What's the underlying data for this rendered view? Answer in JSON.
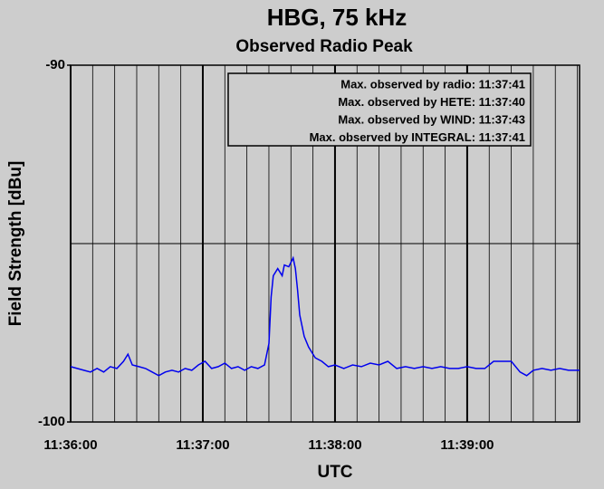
{
  "chart_data": {
    "type": "line",
    "title": "HBG, 75 kHz",
    "subtitle": "Observed Radio Peak",
    "x_label": "UTC",
    "y_label": "Field Strength [dBu]",
    "xlim": [
      "11:36:00",
      "11:39:51"
    ],
    "xticks": [
      "11:36:00",
      "11:37:00",
      "11:38:00",
      "11:39:00"
    ],
    "x_minor_interval_seconds": 10,
    "ylim": [
      -100,
      -90
    ],
    "yticks": [
      -100,
      -90
    ],
    "y_minor_ticks": [
      -95
    ],
    "grid": true,
    "legend": [
      {
        "text": "Max. observed by radio: 11:37:41",
        "color": "#0000ee"
      },
      {
        "text": "Max. observed by HETE: 11:37:40",
        "color": "#ee0000"
      },
      {
        "text": "Max. observed by WIND: 11:37:43",
        "color": "#ee0000"
      },
      {
        "text": "Max. observed by INTEGRAL: 11:37:41",
        "color": "#ee0000"
      }
    ],
    "x": [
      "11:36:00",
      "11:36:03",
      "11:36:06",
      "11:36:09",
      "11:36:12",
      "11:36:15",
      "11:36:18",
      "11:36:21",
      "11:36:24",
      "11:36:26",
      "11:36:28",
      "11:36:31",
      "11:36:34",
      "11:36:37",
      "11:36:40",
      "11:36:43",
      "11:36:46",
      "11:36:49",
      "11:36:52",
      "11:36:55",
      "11:36:58",
      "11:37:01",
      "11:37:04",
      "11:37:07",
      "11:37:10",
      "11:37:13",
      "11:37:16",
      "11:37:19",
      "11:37:22",
      "11:37:25",
      "11:37:28",
      "11:37:30",
      "11:37:31",
      "11:37:32",
      "11:37:34",
      "11:37:36",
      "11:37:37",
      "11:37:39",
      "11:37:41",
      "11:37:42",
      "11:37:43",
      "11:37:44",
      "11:37:46",
      "11:37:48",
      "11:37:51",
      "11:37:54",
      "11:37:57",
      "11:38:00",
      "11:38:04",
      "11:38:08",
      "11:38:12",
      "11:38:16",
      "11:38:20",
      "11:38:24",
      "11:38:28",
      "11:38:32",
      "11:38:36",
      "11:38:40",
      "11:38:44",
      "11:38:48",
      "11:38:52",
      "11:38:56",
      "11:39:00",
      "11:39:04",
      "11:39:08",
      "11:39:12",
      "11:39:16",
      "11:39:20",
      "11:39:24",
      "11:39:27",
      "11:39:30",
      "11:39:34",
      "11:39:38",
      "11:39:42",
      "11:39:46",
      "11:39:51"
    ],
    "series": [
      {
        "color": "#0000ee",
        "values": [
          -98.45,
          -98.5,
          -98.55,
          -98.6,
          -98.5,
          -98.6,
          -98.45,
          -98.5,
          -98.3,
          -98.1,
          -98.4,
          -98.45,
          -98.5,
          -98.6,
          -98.7,
          -98.6,
          -98.55,
          -98.6,
          -98.5,
          -98.55,
          -98.4,
          -98.3,
          -98.5,
          -98.45,
          -98.35,
          -98.5,
          -98.45,
          -98.55,
          -98.45,
          -98.5,
          -98.4,
          -97.8,
          -96.5,
          -95.9,
          -95.7,
          -95.9,
          -95.6,
          -95.65,
          -95.4,
          -95.7,
          -96.3,
          -97.0,
          -97.6,
          -97.9,
          -98.2,
          -98.3,
          -98.45,
          -98.4,
          -98.5,
          -98.4,
          -98.45,
          -98.35,
          -98.4,
          -98.3,
          -98.5,
          -98.45,
          -98.5,
          -98.45,
          -98.5,
          -98.45,
          -98.5,
          -98.5,
          -98.45,
          -98.5,
          -98.5,
          -98.3,
          -98.3,
          -98.3,
          -98.6,
          -98.7,
          -98.55,
          -98.5,
          -98.55,
          -98.5,
          -98.55,
          -98.55
        ]
      }
    ]
  }
}
